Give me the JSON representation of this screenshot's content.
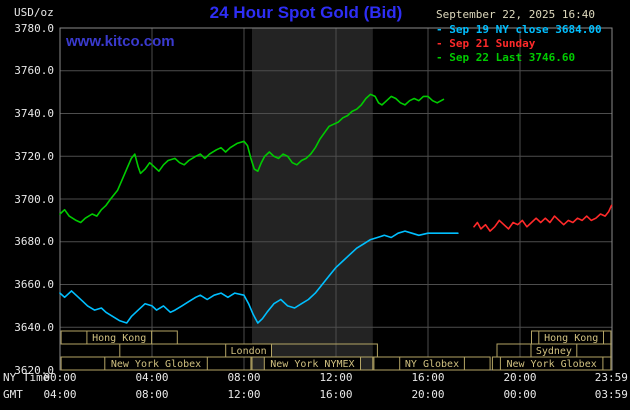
{
  "header": {
    "units": "USD/oz",
    "title": "24 Hour Spot Gold (Bid)",
    "datetime": "September 22, 2025 16:40",
    "watermark": "www.kitco.com"
  },
  "legend": {
    "items": [
      {
        "text": "- Sep 19 NY close 3684.00",
        "color": "#00bfff"
      },
      {
        "text": "- Sep 21 Sunday",
        "color": "#ff2a2a"
      },
      {
        "text": "- Sep 22 Last 3746.60",
        "color": "#00cc00"
      }
    ]
  },
  "axes": {
    "ny_label": "NY Time",
    "gmt_label": "GMT"
  },
  "colors": {
    "title_blue": "#2e2ef5",
    "watermark_blue": "#3a3ace",
    "date_tan": "#ded9bd",
    "axis_text": "#e8e8e8",
    "grid": "#4d4d4d",
    "border": "#8a8a8a",
    "band": "#232323",
    "session_border": "#b3a465",
    "session_text": "#d0c080",
    "cyan": "#00bfff",
    "red": "#ff2a2a",
    "green": "#00cc00"
  },
  "chart_data": {
    "type": "line",
    "title": "24 Hour Spot Gold (Bid)",
    "xlabel": "NY Time (hours 00:00-23:59)",
    "ylabel": "USD/oz",
    "xlim": [
      0,
      24
    ],
    "ylim": [
      3620,
      3780
    ],
    "grid": true,
    "y_ticks": [
      3620,
      3640,
      3660,
      3680,
      3700,
      3720,
      3740,
      3760,
      3780
    ],
    "x_ticks": [
      {
        "hour": 0,
        "ny": "00:00",
        "gmt": "04:00"
      },
      {
        "hour": 4,
        "ny": "04:00",
        "gmt": "08:00"
      },
      {
        "hour": 8,
        "ny": "08:00",
        "gmt": "12:00"
      },
      {
        "hour": 12,
        "ny": "12:00",
        "gmt": "16:00"
      },
      {
        "hour": 16,
        "ny": "16:00",
        "gmt": "20:00"
      },
      {
        "hour": 20,
        "ny": "20:00",
        "gmt": "00:00"
      },
      {
        "hour": 23.97,
        "ny": "23:59",
        "gmt": "03:59"
      }
    ],
    "nymex_band": [
      8.35,
      13.6
    ],
    "sessions": [
      {
        "id": "hong-kong-early",
        "label": "Hong Kong",
        "row": 0,
        "start": 0.05,
        "end": 5.1
      },
      {
        "id": "hong-kong-late",
        "label": "Hong Kong",
        "row": 0,
        "start": 20.5,
        "end": 23.95
      },
      {
        "id": "london",
        "label": "London",
        "row": 1,
        "start": 2.6,
        "end": 13.8
      },
      {
        "id": "sydney",
        "label": "Sydney",
        "row": 1,
        "start": 19.0,
        "end": 23.95
      },
      {
        "id": "new-york-globex-early",
        "label": "New York Globex",
        "row": 2,
        "start": 0.05,
        "end": 8.3
      },
      {
        "id": "new-york-nymex",
        "label": "New York NYMEX",
        "row": 2,
        "start": 8.35,
        "end": 13.6
      },
      {
        "id": "ny-globex",
        "label": "NY Globex",
        "row": 2,
        "start": 13.65,
        "end": 18.7
      },
      {
        "id": "new-york-globex-late",
        "label": "New York Globex",
        "row": 2,
        "start": 18.8,
        "end": 23.95
      }
    ],
    "series": [
      {
        "id": "sep19",
        "name": "Sep 19 NY close 3684.00",
        "close": 3684.0,
        "color": "#00bfff",
        "points": [
          [
            0,
            3656
          ],
          [
            0.2,
            3654
          ],
          [
            0.5,
            3657
          ],
          [
            0.8,
            3654
          ],
          [
            1.0,
            3652
          ],
          [
            1.2,
            3650
          ],
          [
            1.5,
            3648
          ],
          [
            1.8,
            3649
          ],
          [
            2.0,
            3647
          ],
          [
            2.3,
            3645
          ],
          [
            2.6,
            3643
          ],
          [
            2.9,
            3642
          ],
          [
            3.1,
            3645
          ],
          [
            3.4,
            3648
          ],
          [
            3.7,
            3651
          ],
          [
            4.0,
            3650
          ],
          [
            4.2,
            3648
          ],
          [
            4.5,
            3650
          ],
          [
            4.8,
            3647
          ],
          [
            5.0,
            3648
          ],
          [
            5.3,
            3650
          ],
          [
            5.6,
            3652
          ],
          [
            5.9,
            3654
          ],
          [
            6.1,
            3655
          ],
          [
            6.4,
            3653
          ],
          [
            6.7,
            3655
          ],
          [
            7.0,
            3656
          ],
          [
            7.3,
            3654
          ],
          [
            7.6,
            3656
          ],
          [
            8.0,
            3655
          ],
          [
            8.2,
            3651
          ],
          [
            8.4,
            3646
          ],
          [
            8.6,
            3642
          ],
          [
            8.8,
            3644
          ],
          [
            9.0,
            3647
          ],
          [
            9.3,
            3651
          ],
          [
            9.6,
            3653
          ],
          [
            9.9,
            3650
          ],
          [
            10.2,
            3649
          ],
          [
            10.5,
            3651
          ],
          [
            10.8,
            3653
          ],
          [
            11.1,
            3656
          ],
          [
            11.4,
            3660
          ],
          [
            11.7,
            3664
          ],
          [
            12.0,
            3668
          ],
          [
            12.3,
            3671
          ],
          [
            12.6,
            3674
          ],
          [
            12.9,
            3677
          ],
          [
            13.2,
            3679
          ],
          [
            13.5,
            3681
          ],
          [
            13.8,
            3682
          ],
          [
            14.1,
            3683
          ],
          [
            14.4,
            3682
          ],
          [
            14.7,
            3684
          ],
          [
            15.0,
            3685
          ],
          [
            15.3,
            3684
          ],
          [
            15.6,
            3683
          ],
          [
            16.0,
            3684
          ],
          [
            16.5,
            3684
          ],
          [
            17.3,
            3684
          ]
        ]
      },
      {
        "id": "sep21",
        "name": "Sep 21 Sunday",
        "color": "#ff2a2a",
        "points": [
          [
            18.0,
            3687
          ],
          [
            18.15,
            3689
          ],
          [
            18.3,
            3686
          ],
          [
            18.5,
            3688
          ],
          [
            18.7,
            3685
          ],
          [
            18.9,
            3687
          ],
          [
            19.1,
            3690
          ],
          [
            19.3,
            3688
          ],
          [
            19.5,
            3686
          ],
          [
            19.7,
            3689
          ],
          [
            19.9,
            3688
          ],
          [
            20.1,
            3690
          ],
          [
            20.3,
            3687
          ],
          [
            20.5,
            3689
          ],
          [
            20.7,
            3691
          ],
          [
            20.9,
            3689
          ],
          [
            21.1,
            3691
          ],
          [
            21.3,
            3689
          ],
          [
            21.5,
            3692
          ],
          [
            21.7,
            3690
          ],
          [
            21.9,
            3688
          ],
          [
            22.1,
            3690
          ],
          [
            22.3,
            3689
          ],
          [
            22.5,
            3691
          ],
          [
            22.7,
            3690
          ],
          [
            22.9,
            3692
          ],
          [
            23.1,
            3690
          ],
          [
            23.3,
            3691
          ],
          [
            23.5,
            3693
          ],
          [
            23.7,
            3692
          ],
          [
            23.85,
            3694
          ],
          [
            23.98,
            3697
          ]
        ]
      },
      {
        "id": "sep22",
        "name": "Sep 22 Last 3746.60",
        "last": 3746.6,
        "color": "#00cc00",
        "points": [
          [
            0,
            3693
          ],
          [
            0.2,
            3695
          ],
          [
            0.4,
            3692
          ],
          [
            0.7,
            3690
          ],
          [
            0.9,
            3689
          ],
          [
            1.1,
            3691
          ],
          [
            1.4,
            3693
          ],
          [
            1.6,
            3692
          ],
          [
            1.8,
            3695
          ],
          [
            2.0,
            3697
          ],
          [
            2.2,
            3700
          ],
          [
            2.5,
            3704
          ],
          [
            2.7,
            3709
          ],
          [
            2.9,
            3714
          ],
          [
            3.1,
            3719
          ],
          [
            3.25,
            3721
          ],
          [
            3.4,
            3715
          ],
          [
            3.5,
            3712
          ],
          [
            3.7,
            3714
          ],
          [
            3.9,
            3717
          ],
          [
            4.1,
            3715
          ],
          [
            4.3,
            3713
          ],
          [
            4.5,
            3716
          ],
          [
            4.7,
            3718
          ],
          [
            5.0,
            3719
          ],
          [
            5.2,
            3717
          ],
          [
            5.4,
            3716
          ],
          [
            5.6,
            3718
          ],
          [
            5.9,
            3720
          ],
          [
            6.1,
            3721
          ],
          [
            6.3,
            3719
          ],
          [
            6.5,
            3721
          ],
          [
            6.8,
            3723
          ],
          [
            7.0,
            3724
          ],
          [
            7.2,
            3722
          ],
          [
            7.4,
            3724
          ],
          [
            7.7,
            3726
          ],
          [
            8.0,
            3727
          ],
          [
            8.15,
            3725
          ],
          [
            8.3,
            3719
          ],
          [
            8.45,
            3714
          ],
          [
            8.6,
            3713
          ],
          [
            8.75,
            3717
          ],
          [
            8.9,
            3720
          ],
          [
            9.1,
            3722
          ],
          [
            9.3,
            3720
          ],
          [
            9.5,
            3719
          ],
          [
            9.7,
            3721
          ],
          [
            9.9,
            3720
          ],
          [
            10.1,
            3717
          ],
          [
            10.3,
            3716
          ],
          [
            10.5,
            3718
          ],
          [
            10.7,
            3719
          ],
          [
            10.9,
            3721
          ],
          [
            11.1,
            3724
          ],
          [
            11.3,
            3728
          ],
          [
            11.5,
            3731
          ],
          [
            11.7,
            3734
          ],
          [
            11.9,
            3735
          ],
          [
            12.1,
            3736
          ],
          [
            12.3,
            3738
          ],
          [
            12.5,
            3739
          ],
          [
            12.7,
            3741
          ],
          [
            12.9,
            3742
          ],
          [
            13.1,
            3744
          ],
          [
            13.3,
            3747
          ],
          [
            13.5,
            3749
          ],
          [
            13.7,
            3748
          ],
          [
            13.85,
            3745
          ],
          [
            14.0,
            3744
          ],
          [
            14.2,
            3746
          ],
          [
            14.4,
            3748
          ],
          [
            14.6,
            3747
          ],
          [
            14.8,
            3745
          ],
          [
            15.0,
            3744
          ],
          [
            15.2,
            3746
          ],
          [
            15.4,
            3747
          ],
          [
            15.6,
            3746
          ],
          [
            15.8,
            3748
          ],
          [
            16.0,
            3748
          ],
          [
            16.2,
            3746
          ],
          [
            16.4,
            3745
          ],
          [
            16.67,
            3746.6
          ]
        ]
      }
    ]
  }
}
